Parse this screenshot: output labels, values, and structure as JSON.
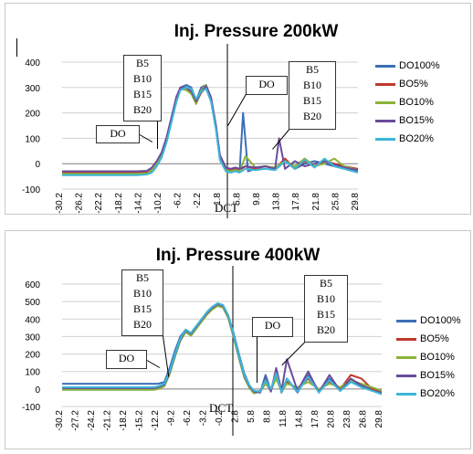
{
  "chart_data": [
    {
      "type": "line",
      "title": "Inj. Pressure 200kW",
      "xlabel": "DCT",
      "ylabel": "",
      "ylim": [
        -100,
        400
      ],
      "yticks": [
        -100,
        0,
        100,
        200,
        300,
        400
      ],
      "xticks": [
        "-30.2",
        "-26.2",
        "-22.2",
        "-18.2",
        "-14.2",
        "-10.2",
        "-6.2",
        "-2.2",
        "1.8",
        "5.8",
        "9.8",
        "13.8",
        "17.8",
        "21.8",
        "25.8",
        "29.8"
      ],
      "xlim": [
        -30.2,
        29.8
      ],
      "grid": true,
      "legend_position": "right",
      "annotations": {
        "blend_box": [
          "B5",
          "B10",
          "B15",
          "B20"
        ],
        "do_left": "DO",
        "do_right": "DO",
        "blend_box_right": [
          "B5",
          "B10",
          "B15",
          "B20"
        ]
      },
      "series": [
        {
          "name": "DO100%",
          "color": "#3b6fb6",
          "x": [
            -30.2,
            -26,
            -22,
            -18,
            -15,
            -13,
            -12,
            -11,
            -10,
            -9,
            -8,
            -7,
            -6.2,
            -5,
            -4,
            -3,
            -2,
            -1,
            0,
            1,
            1.8,
            3,
            4,
            5,
            5.8,
            6.5,
            7.5,
            9,
            11,
            13,
            15,
            17,
            19,
            21,
            23,
            25,
            27,
            29.8
          ],
          "y": [
            -40,
            -40,
            -40,
            -40,
            -40,
            -38,
            -30,
            -5,
            30,
            90,
            170,
            250,
            300,
            310,
            300,
            250,
            300,
            310,
            260,
            150,
            30,
            -20,
            -30,
            -20,
            -30,
            200,
            -30,
            -20,
            -10,
            -20,
            10,
            -20,
            0,
            10,
            0,
            -10,
            -20,
            -30
          ]
        },
        {
          "name": "BO5%",
          "color": "#c0392b",
          "x": [
            -30.2,
            -26,
            -22,
            -18,
            -15,
            -13,
            -12,
            -11,
            -10,
            -9,
            -8,
            -7,
            -6.2,
            -5,
            -4,
            -3,
            -2,
            -1,
            0,
            1,
            1.8,
            3,
            4,
            5,
            5.8,
            7,
            9,
            11,
            13,
            15,
            17,
            19,
            21,
            23,
            25,
            27,
            29.8
          ],
          "y": [
            -35,
            -35,
            -35,
            -35,
            -35,
            -33,
            -20,
            5,
            40,
            100,
            180,
            260,
            300,
            295,
            280,
            240,
            280,
            300,
            250,
            140,
            20,
            -20,
            -25,
            -20,
            -25,
            -10,
            -20,
            -10,
            -20,
            20,
            -20,
            10,
            -10,
            10,
            0,
            -10,
            -20
          ]
        },
        {
          "name": "BO10%",
          "color": "#8db33a",
          "x": [
            -30.2,
            -26,
            -22,
            -18,
            -15,
            -13,
            -12,
            -11,
            -10,
            -9,
            -8,
            -7,
            -6.2,
            -5,
            -4,
            -3,
            -2,
            -1,
            0,
            1,
            1.8,
            3,
            4,
            5,
            5.8,
            7,
            9,
            11,
            13,
            15,
            17,
            19,
            21,
            23,
            25,
            27,
            29.8
          ],
          "y": [
            -40,
            -40,
            -40,
            -40,
            -40,
            -38,
            -25,
            0,
            35,
            95,
            175,
            255,
            295,
            290,
            275,
            235,
            290,
            310,
            255,
            145,
            25,
            -25,
            -30,
            -25,
            -30,
            30,
            -15,
            -10,
            -15,
            10,
            -10,
            20,
            -10,
            0,
            20,
            -10,
            -25
          ]
        },
        {
          "name": "BO15%",
          "color": "#6a4c9c",
          "x": [
            -30.2,
            -26,
            -22,
            -18,
            -15,
            -13,
            -12,
            -11,
            -10,
            -9,
            -8,
            -7,
            -6.2,
            -5,
            -4,
            -3,
            -2,
            -1,
            0,
            1,
            1.8,
            3,
            4,
            5,
            5.8,
            7,
            9,
            11,
            13,
            13.8,
            15,
            17,
            19,
            21,
            23,
            25,
            27,
            29.8
          ],
          "y": [
            -30,
            -30,
            -30,
            -30,
            -30,
            -28,
            -15,
            10,
            45,
            105,
            185,
            265,
            300,
            300,
            285,
            245,
            285,
            305,
            260,
            150,
            35,
            -15,
            -20,
            -15,
            -20,
            -10,
            -15,
            -10,
            -20,
            100,
            -20,
            10,
            -10,
            0,
            10,
            -5,
            -15,
            -25
          ]
        },
        {
          "name": "BO20%",
          "color": "#3db6d8",
          "x": [
            -30.2,
            -26,
            -22,
            -18,
            -15,
            -13,
            -12,
            -11,
            -10,
            -9,
            -8,
            -7,
            -6.2,
            -5,
            -4,
            -3,
            -2,
            -1,
            0,
            1,
            1.8,
            3,
            4,
            5,
            5.8,
            7,
            9,
            11,
            13,
            15,
            17,
            19,
            21,
            23,
            25,
            27,
            29.8
          ],
          "y": [
            -45,
            -45,
            -45,
            -45,
            -45,
            -42,
            -35,
            -10,
            25,
            85,
            165,
            245,
            290,
            300,
            295,
            255,
            285,
            295,
            245,
            135,
            15,
            -30,
            -35,
            -30,
            -35,
            -20,
            -25,
            -20,
            -25,
            10,
            -20,
            15,
            -15,
            20,
            -10,
            -20,
            -35
          ]
        }
      ]
    },
    {
      "type": "line",
      "title": "Inj. Pressure 400kW",
      "xlabel": "DCT",
      "ylabel": "",
      "ylim": [
        -100,
        600
      ],
      "yticks": [
        -100,
        0,
        100,
        200,
        300,
        400,
        500,
        600
      ],
      "xticks": [
        "-30.2",
        "-27.2",
        "-24.2",
        "-21.2",
        "-18.2",
        "-15.2",
        "-12.2",
        "-9.2",
        "-6.2",
        "-3.2",
        "-0.2",
        "2.8",
        "5.8",
        "8.8",
        "11.8",
        "14.8",
        "17.8",
        "20.8",
        "23.8",
        "26.8",
        "29.8"
      ],
      "xlim": [
        -30.2,
        29.8
      ],
      "grid": true,
      "legend_position": "right",
      "annotations": {
        "blend_box": [
          "B5",
          "B10",
          "B15",
          "B20"
        ],
        "do_left": "DO",
        "do_right": "DO",
        "blend_box_right": [
          "B5",
          "B10",
          "B15",
          "B20"
        ]
      },
      "series": [
        {
          "name": "DO100%",
          "color": "#3b6fb6",
          "x": [
            -30.2,
            -27,
            -24,
            -21,
            -18,
            -15,
            -13,
            -12.2,
            -11,
            -10,
            -9,
            -8,
            -7,
            -6,
            -5,
            -4,
            -3,
            -2,
            -1,
            0,
            1,
            2,
            3,
            4,
            5,
            5.8,
            7,
            8,
            9,
            10,
            11,
            12,
            14,
            16,
            18,
            20,
            22,
            24,
            26,
            28,
            29.8
          ],
          "y": [
            30,
            30,
            30,
            30,
            30,
            30,
            30,
            30,
            40,
            120,
            220,
            300,
            340,
            320,
            360,
            400,
            440,
            470,
            490,
            480,
            420,
            320,
            200,
            90,
            20,
            -10,
            -20,
            80,
            -10,
            100,
            -20,
            60,
            -20,
            80,
            -10,
            60,
            -10,
            40,
            20,
            0,
            -10
          ]
        },
        {
          "name": "BO5%",
          "color": "#c0392b",
          "x": [
            -30.2,
            -27,
            -24,
            -21,
            -18,
            -15,
            -13,
            -12.2,
            -11,
            -10,
            -9,
            -8,
            -7,
            -6,
            -5,
            -4,
            -3,
            -2,
            -1,
            0,
            1,
            2,
            3,
            4,
            5,
            5.8,
            7,
            8,
            9,
            10,
            11,
            12,
            14,
            16,
            18,
            20,
            22,
            24,
            26,
            28,
            29.8
          ],
          "y": [
            0,
            0,
            0,
            0,
            0,
            0,
            0,
            5,
            20,
            90,
            190,
            280,
            330,
            310,
            350,
            390,
            430,
            460,
            480,
            470,
            410,
            300,
            180,
            70,
            10,
            -20,
            -10,
            40,
            0,
            80,
            -20,
            40,
            0,
            60,
            -10,
            40,
            0,
            80,
            60,
            0,
            -20
          ]
        },
        {
          "name": "BO10%",
          "color": "#8db33a",
          "x": [
            -30.2,
            -27,
            -24,
            -21,
            -18,
            -15,
            -13,
            -12.2,
            -11,
            -10,
            -9,
            -8,
            -7,
            -6,
            -5,
            -4,
            -3,
            -2,
            -1,
            0,
            1,
            2,
            3,
            4,
            5,
            5.8,
            7,
            8,
            9,
            10,
            11,
            12,
            14,
            16,
            18,
            20,
            22,
            24,
            26,
            28,
            29.8
          ],
          "y": [
            -5,
            -5,
            -5,
            -5,
            -5,
            -5,
            -5,
            0,
            15,
            85,
            185,
            275,
            325,
            305,
            345,
            385,
            425,
            455,
            475,
            465,
            405,
            295,
            175,
            65,
            5,
            -25,
            -15,
            30,
            -5,
            60,
            -15,
            30,
            10,
            40,
            0,
            30,
            10,
            50,
            30,
            10,
            -10
          ]
        },
        {
          "name": "BO15%",
          "color": "#6a4c9c",
          "x": [
            -30.2,
            -27,
            -24,
            -21,
            -18,
            -15,
            -13,
            -12.2,
            -11,
            -10,
            -9,
            -8,
            -7,
            -6,
            -5,
            -4,
            -3,
            -2,
            -1,
            0,
            1,
            2,
            3,
            4,
            5,
            5.8,
            7,
            8,
            9,
            10,
            11,
            12,
            14,
            16,
            18,
            20,
            22,
            24,
            26,
            28,
            29.8
          ],
          "y": [
            5,
            5,
            5,
            5,
            5,
            5,
            5,
            10,
            25,
            95,
            195,
            285,
            335,
            315,
            355,
            395,
            435,
            465,
            485,
            475,
            415,
            305,
            185,
            75,
            15,
            -15,
            -20,
            60,
            -15,
            120,
            -10,
            170,
            -10,
            100,
            -20,
            80,
            -10,
            60,
            20,
            -10,
            -20
          ]
        },
        {
          "name": "BO20%",
          "color": "#3db6d8",
          "x": [
            -30.2,
            -27,
            -24,
            -21,
            -18,
            -15,
            -13,
            -12.2,
            -11,
            -10,
            -9,
            -8,
            -7,
            -6,
            -5,
            -4,
            -3,
            -2,
            -1,
            0,
            1,
            2,
            3,
            4,
            5,
            5.8,
            7,
            8,
            9,
            10,
            11,
            12,
            14,
            16,
            18,
            20,
            22,
            24,
            26,
            28,
            29.8
          ],
          "y": [
            10,
            10,
            10,
            10,
            10,
            10,
            10,
            15,
            30,
            100,
            200,
            290,
            340,
            320,
            360,
            400,
            440,
            470,
            490,
            480,
            420,
            310,
            190,
            80,
            20,
            -10,
            -15,
            50,
            0,
            90,
            -20,
            60,
            -15,
            70,
            -20,
            50,
            -10,
            40,
            10,
            -10,
            -30
          ]
        }
      ]
    }
  ]
}
